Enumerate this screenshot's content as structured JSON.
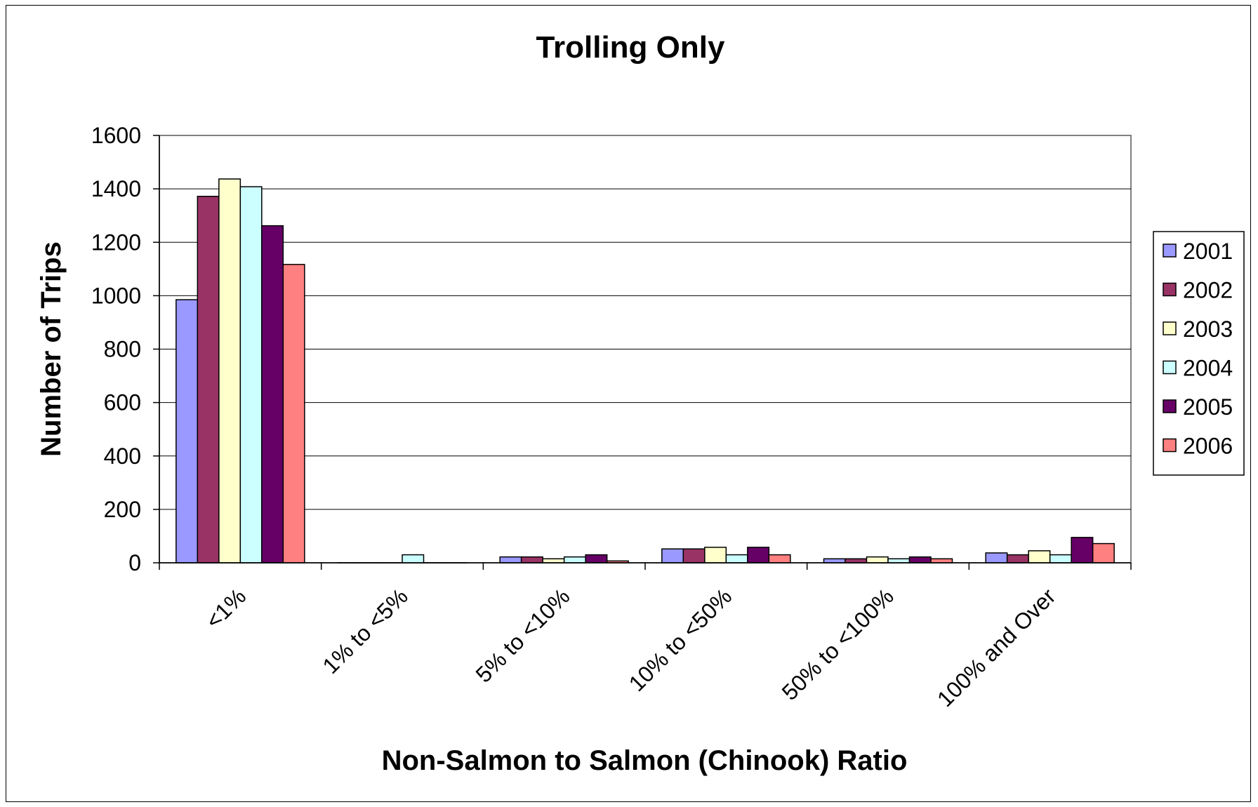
{
  "chart_data": {
    "type": "bar",
    "title": "Trolling Only",
    "xlabel": "Non-Salmon to Salmon (Chinook) Ratio",
    "ylabel": "Number of Trips",
    "ylim": [
      0,
      1600
    ],
    "yticks": [
      0,
      200,
      400,
      600,
      800,
      1000,
      1200,
      1400,
      1600
    ],
    "grid": true,
    "legend_position": "right",
    "categories": [
      "<1%",
      "1% to <5%",
      "5% to <10%",
      "10% to <50%",
      "50% to <100%",
      "100% and Over"
    ],
    "series": [
      {
        "name": "2001",
        "color": "#9999ff",
        "values": [
          985,
          0,
          22,
          52,
          15,
          37
        ]
      },
      {
        "name": "2002",
        "color": "#993366",
        "values": [
          1372,
          0,
          22,
          52,
          15,
          30
        ]
      },
      {
        "name": "2003",
        "color": "#ffffcc",
        "values": [
          1437,
          0,
          15,
          58,
          22,
          45
        ]
      },
      {
        "name": "2004",
        "color": "#ccffff",
        "values": [
          1408,
          30,
          22,
          30,
          15,
          30
        ]
      },
      {
        "name": "2005",
        "color": "#660066",
        "values": [
          1262,
          0,
          30,
          58,
          22,
          95
        ]
      },
      {
        "name": "2006",
        "color": "#ff8080",
        "values": [
          1117,
          0,
          7,
          30,
          15,
          72
        ]
      }
    ]
  }
}
